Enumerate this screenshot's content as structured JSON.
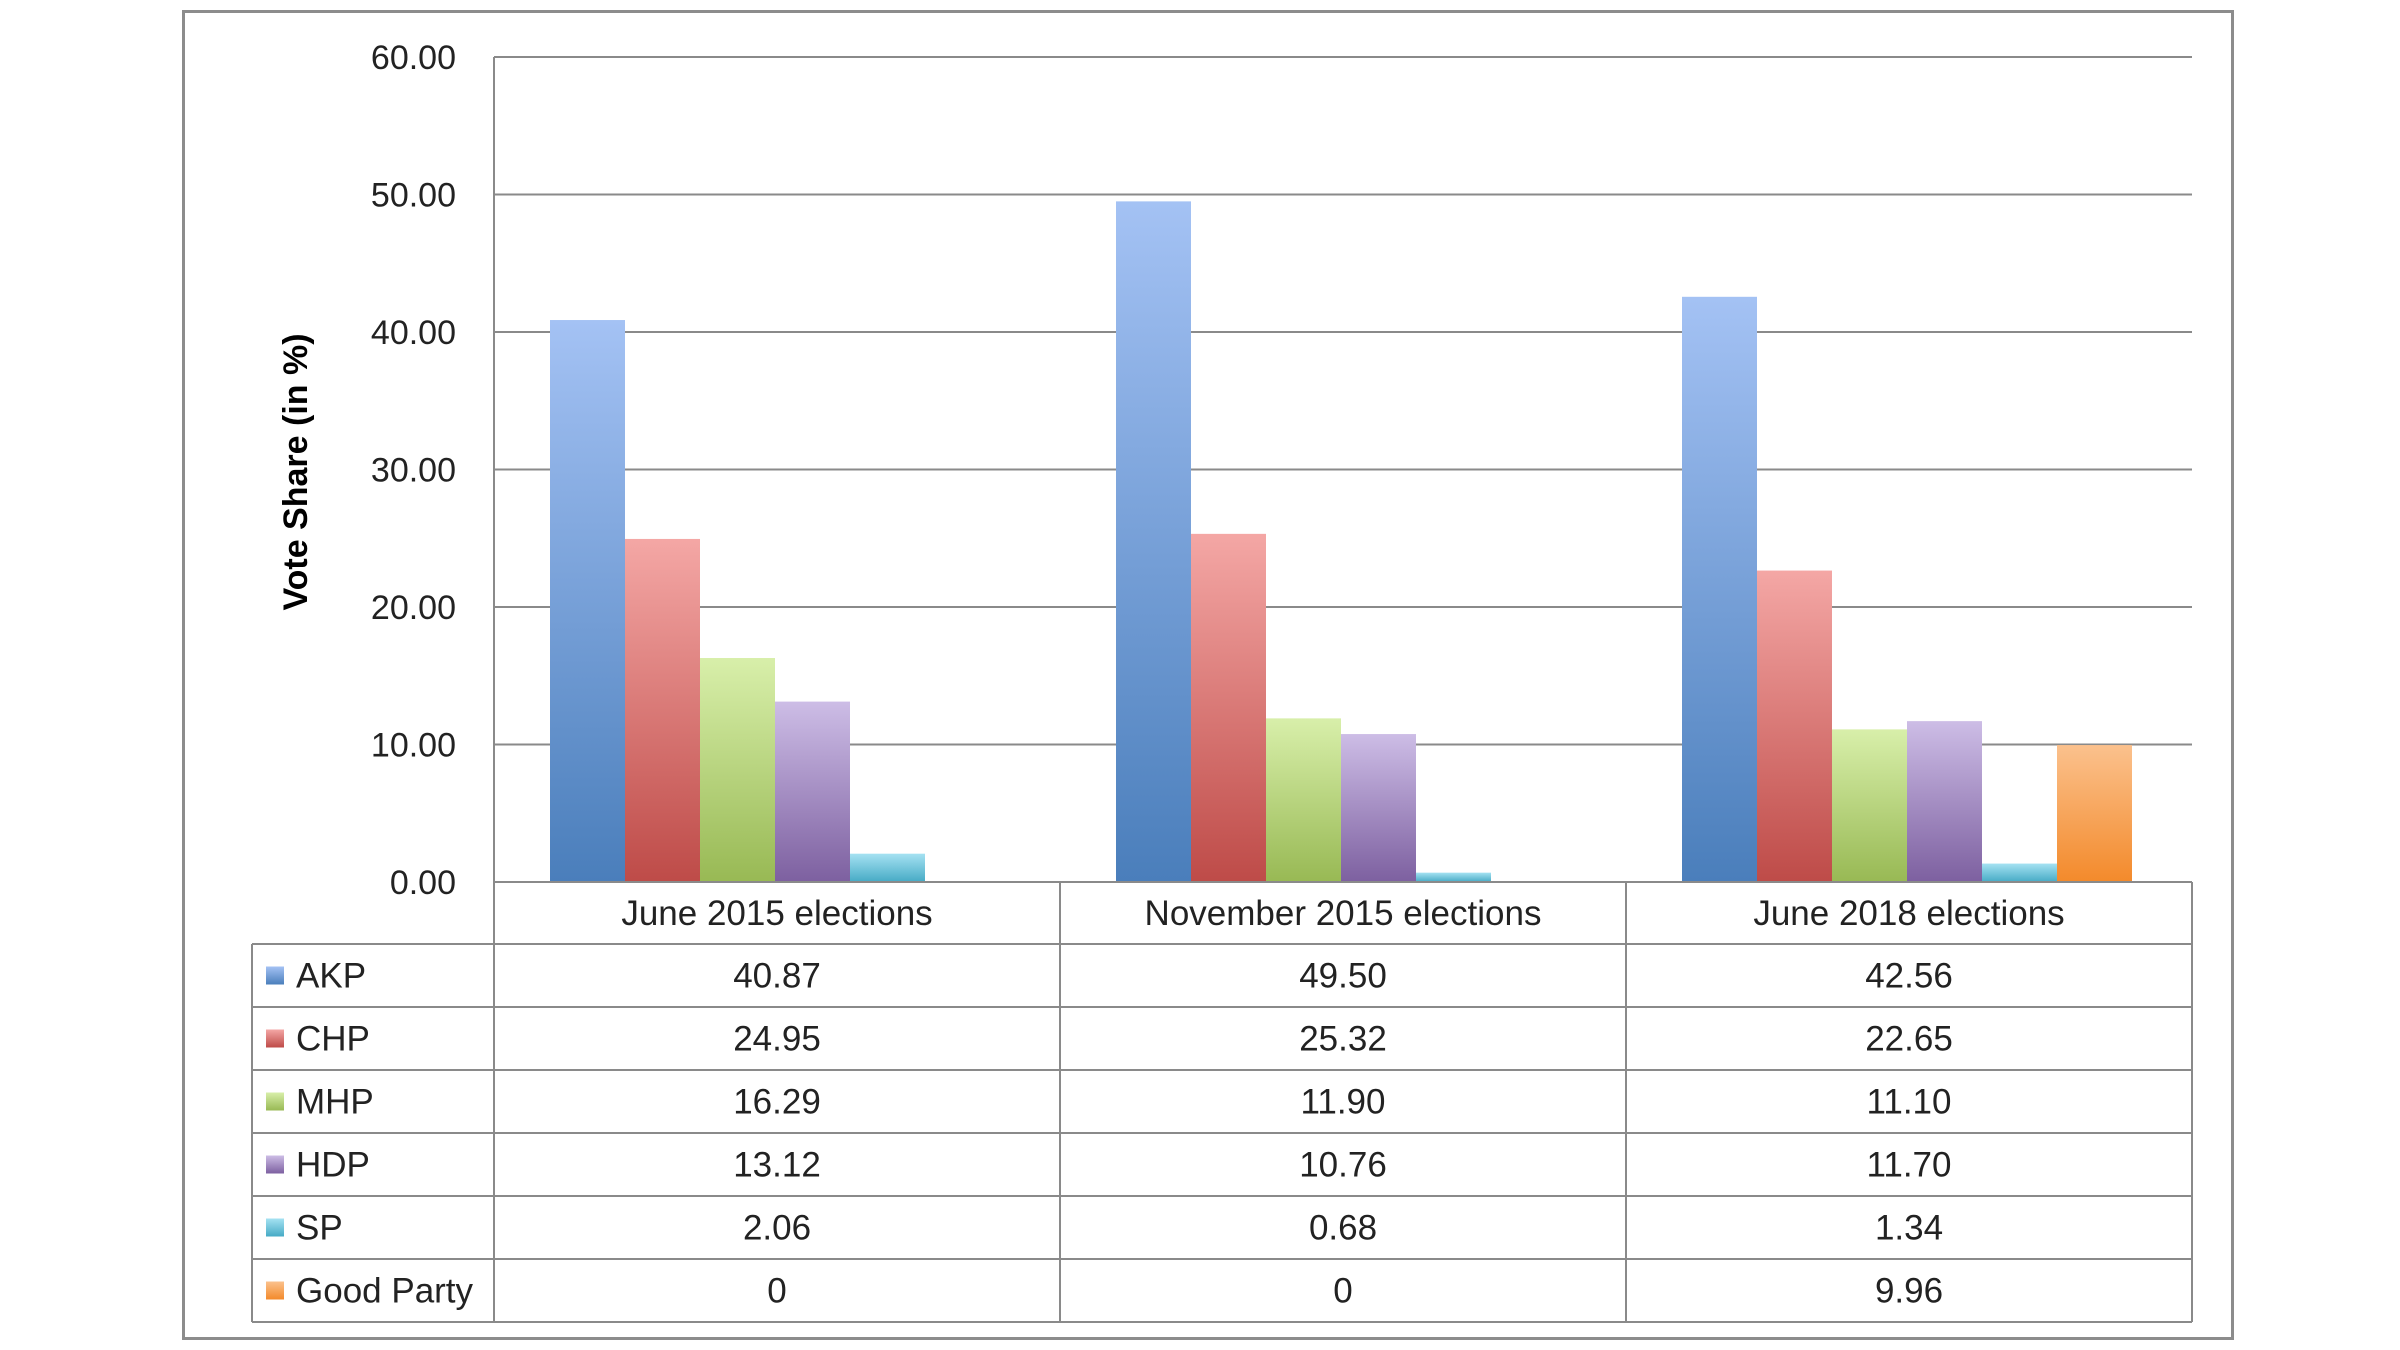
{
  "chart_data": {
    "type": "bar",
    "title": "",
    "xlabel": "",
    "ylabel": "Vote Share (in %)",
    "ylim": [
      0,
      60
    ],
    "yticks": [
      "0.00",
      "10.00",
      "20.00",
      "30.00",
      "40.00",
      "50.00",
      "60.00"
    ],
    "grid": true,
    "legend": "data-table",
    "categories": [
      "June 2015 elections",
      "November 2015 elections",
      "June 2018 elections"
    ],
    "series": [
      {
        "name": "AKP",
        "values": [
          40.87,
          49.5,
          42.56
        ],
        "labels": [
          "40.87",
          "49.50",
          "42.56"
        ],
        "color": "#4a7ebb",
        "light": "#a4c2f4"
      },
      {
        "name": "CHP",
        "values": [
          24.95,
          25.32,
          22.65
        ],
        "labels": [
          "24.95",
          "25.32",
          "22.65"
        ],
        "color": "#be4b48",
        "light": "#f4a7a5"
      },
      {
        "name": "MHP",
        "values": [
          16.29,
          11.9,
          11.1
        ],
        "labels": [
          "16.29",
          "11.90",
          "11.10"
        ],
        "color": "#98b954",
        "light": "#d8efaa"
      },
      {
        "name": "HDP",
        "values": [
          13.12,
          10.76,
          11.7
        ],
        "labels": [
          "13.12",
          "10.76",
          "11.70"
        ],
        "color": "#7d60a0",
        "light": "#cdbde6"
      },
      {
        "name": "SP",
        "values": [
          2.06,
          0.68,
          1.34
        ],
        "labels": [
          "2.06",
          "0.68",
          "1.34"
        ],
        "color": "#46aac5",
        "light": "#a5e2f2"
      },
      {
        "name": "Good Party",
        "values": [
          0,
          0,
          9.96
        ],
        "labels": [
          "0",
          "0",
          "9.96"
        ],
        "color": "#f38a2b",
        "light": "#fbc18d"
      }
    ]
  }
}
